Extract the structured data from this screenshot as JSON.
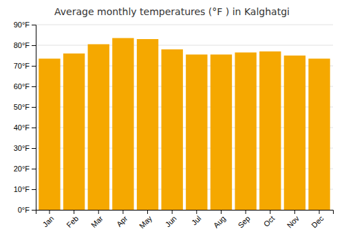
{
  "chart_data": {
    "type": "bar",
    "title": "Average monthly temperatures (°F ) in Kalghatgi",
    "categories": [
      "Jan",
      "Feb",
      "Mar",
      "Apr",
      "May",
      "Jun",
      "Jul",
      "Aug",
      "Sep",
      "Oct",
      "Nov",
      "Dec"
    ],
    "values": [
      73.5,
      76.0,
      80.5,
      83.5,
      83.0,
      78.0,
      75.5,
      75.5,
      76.5,
      77.0,
      75.0,
      73.5
    ],
    "color": "#F5A800",
    "ylim": [
      0,
      90
    ],
    "yticks": [
      {
        "value": 0,
        "label": "0°F"
      },
      {
        "value": 10,
        "label": "10°F"
      },
      {
        "value": 20,
        "label": "20°F"
      },
      {
        "value": 30,
        "label": "30°F"
      },
      {
        "value": 40,
        "label": "40°F"
      },
      {
        "value": 50,
        "label": "50°F"
      },
      {
        "value": 60,
        "label": "60°F"
      },
      {
        "value": 70,
        "label": "70°F"
      },
      {
        "value": 80,
        "label": "80°F"
      },
      {
        "value": 90,
        "label": "90°F"
      }
    ],
    "grid": true
  }
}
